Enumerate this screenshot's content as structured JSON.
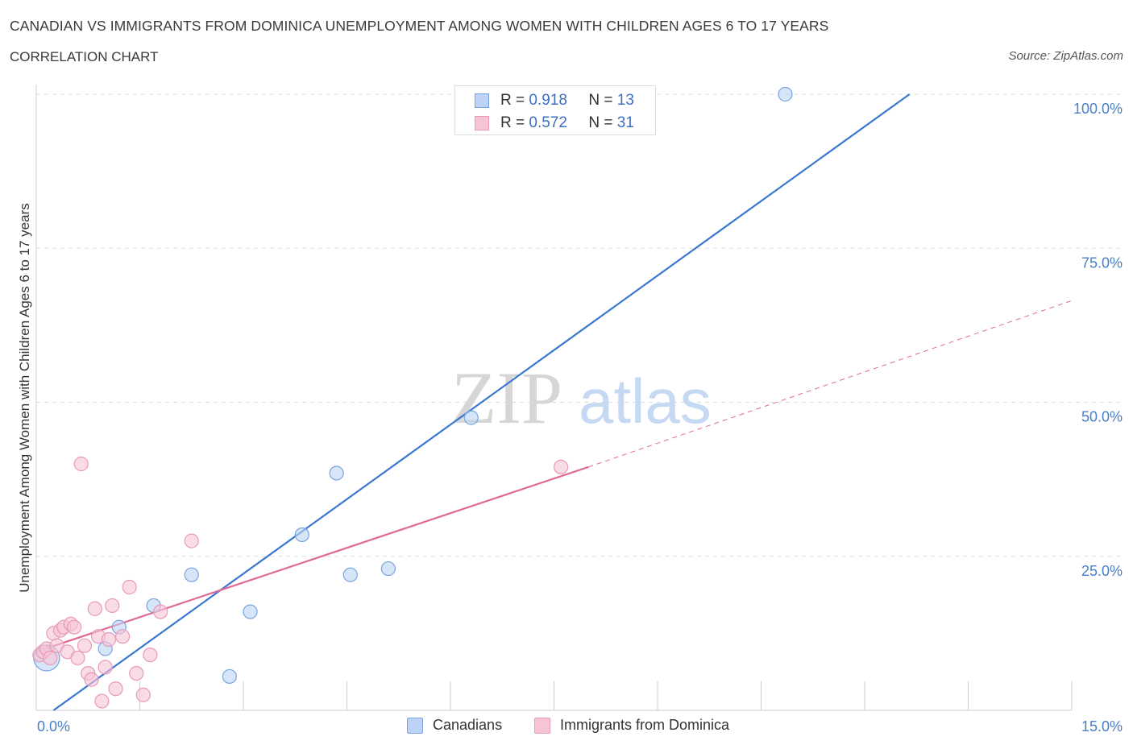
{
  "title": "CANADIAN VS IMMIGRANTS FROM DOMINICA UNEMPLOYMENT AMONG WOMEN WITH CHILDREN AGES 6 TO 17 YEARS",
  "subtitle": "CORRELATION CHART",
  "source": "Source: ZipAtlas.com",
  "watermark": {
    "zip": "ZIP",
    "atlas": "atlas"
  },
  "legend": {
    "r_label": "R =",
    "n_label": "N =",
    "rows": [
      {
        "r": "0.918",
        "n": "13"
      },
      {
        "r": "0.572",
        "n": "31"
      }
    ]
  },
  "bottom_legend": [
    "Canadians",
    "Immigrants from Dominica"
  ],
  "colors": {
    "blue": "#3a78d0",
    "blue_fill": "#bcd3f5",
    "pink": "#e06a96",
    "pink_fill": "#f7c4d5",
    "grid": "#dddddd",
    "tick_label": "#4a7ec8"
  },
  "chart_data": {
    "type": "scatter",
    "xlabel": "",
    "ylabel": "Unemployment Among Women with Children Ages 6 to 17 years",
    "xlim": [
      0,
      15
    ],
    "ylim": [
      0,
      100
    ],
    "x_tick_labels": [
      "0.0%",
      "15.0%"
    ],
    "y_ticks": [
      25,
      50,
      75,
      100
    ],
    "y_tick_labels": [
      "25.0%",
      "50.0%",
      "75.0%",
      "100.0%"
    ],
    "series": [
      {
        "name": "Canadians",
        "color": "#3a78d0",
        "points": [
          {
            "x": 0.15,
            "y": 8.5,
            "big": true
          },
          {
            "x": 1.0,
            "y": 10.0
          },
          {
            "x": 1.2,
            "y": 13.5
          },
          {
            "x": 1.7,
            "y": 17.0
          },
          {
            "x": 2.25,
            "y": 22.0
          },
          {
            "x": 2.8,
            "y": 5.5
          },
          {
            "x": 3.1,
            "y": 16.0
          },
          {
            "x": 3.85,
            "y": 28.5
          },
          {
            "x": 4.35,
            "y": 38.5
          },
          {
            "x": 4.55,
            "y": 22.0
          },
          {
            "x": 5.1,
            "y": 23.0
          },
          {
            "x": 6.3,
            "y": 47.5
          },
          {
            "x": 10.85,
            "y": 100.0
          }
        ],
        "trend": {
          "x0": 0.25,
          "y0": 0,
          "x1": 12.65,
          "y1": 100,
          "r": 0.918,
          "n": 13
        }
      },
      {
        "name": "Immigrants from Dominica",
        "color": "#e06a96",
        "points": [
          {
            "x": 0.05,
            "y": 9.0
          },
          {
            "x": 0.1,
            "y": 9.5
          },
          {
            "x": 0.15,
            "y": 10.0
          },
          {
            "x": 0.2,
            "y": 8.5
          },
          {
            "x": 0.25,
            "y": 12.5
          },
          {
            "x": 0.3,
            "y": 10.5
          },
          {
            "x": 0.35,
            "y": 13.0
          },
          {
            "x": 0.4,
            "y": 13.5
          },
          {
            "x": 0.45,
            "y": 9.5
          },
          {
            "x": 0.5,
            "y": 14.0
          },
          {
            "x": 0.55,
            "y": 13.5
          },
          {
            "x": 0.6,
            "y": 8.5
          },
          {
            "x": 0.65,
            "y": 40.0
          },
          {
            "x": 0.7,
            "y": 10.5
          },
          {
            "x": 0.75,
            "y": 6.0
          },
          {
            "x": 0.8,
            "y": 5.0
          },
          {
            "x": 0.85,
            "y": 16.5
          },
          {
            "x": 0.9,
            "y": 12.0
          },
          {
            "x": 0.95,
            "y": 1.5
          },
          {
            "x": 1.0,
            "y": 7.0
          },
          {
            "x": 1.05,
            "y": 11.5
          },
          {
            "x": 1.1,
            "y": 17.0
          },
          {
            "x": 1.15,
            "y": 3.5
          },
          {
            "x": 1.25,
            "y": 12.0
          },
          {
            "x": 1.35,
            "y": 20.0
          },
          {
            "x": 1.45,
            "y": 6.0
          },
          {
            "x": 1.55,
            "y": 2.5
          },
          {
            "x": 1.65,
            "y": 9.0
          },
          {
            "x": 1.8,
            "y": 16.0
          },
          {
            "x": 2.25,
            "y": 27.5
          },
          {
            "x": 7.6,
            "y": 39.5
          }
        ],
        "trend": {
          "x0": 0.0,
          "y0": 9.5,
          "x1": 8.0,
          "y1": 39.5,
          "ext_x1": 15.0,
          "ext_y1": 66.5,
          "r": 0.572,
          "n": 31
        }
      }
    ]
  }
}
